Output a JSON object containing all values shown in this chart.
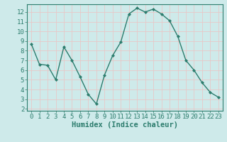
{
  "x": [
    0,
    1,
    2,
    3,
    4,
    5,
    6,
    7,
    8,
    9,
    10,
    11,
    12,
    13,
    14,
    15,
    16,
    17,
    18,
    19,
    20,
    21,
    22,
    23
  ],
  "y": [
    8.7,
    6.6,
    6.5,
    5.0,
    8.4,
    7.0,
    5.3,
    3.5,
    2.5,
    5.5,
    7.5,
    8.9,
    11.8,
    12.4,
    12.0,
    12.3,
    11.8,
    11.1,
    9.5,
    7.0,
    6.0,
    4.7,
    3.7,
    3.2
  ],
  "line_color": "#2d7d6e",
  "marker": "D",
  "marker_size": 2.0,
  "bg_color": "#ceeaea",
  "grid_color": "#e8c8c8",
  "xlabel": "Humidex (Indice chaleur)",
  "xlim": [
    -0.5,
    23.5
  ],
  "ylim": [
    1.8,
    12.8
  ],
  "yticks": [
    2,
    3,
    4,
    5,
    6,
    7,
    8,
    9,
    10,
    11,
    12
  ],
  "xticks": [
    0,
    1,
    2,
    3,
    4,
    5,
    6,
    7,
    8,
    9,
    10,
    11,
    12,
    13,
    14,
    15,
    16,
    17,
    18,
    19,
    20,
    21,
    22,
    23
  ],
  "tick_label_fontsize": 6.5,
  "xlabel_fontsize": 7.5,
  "line_width": 1.0,
  "spine_color": "#2d7d6e",
  "tick_color": "#2d7d6e"
}
